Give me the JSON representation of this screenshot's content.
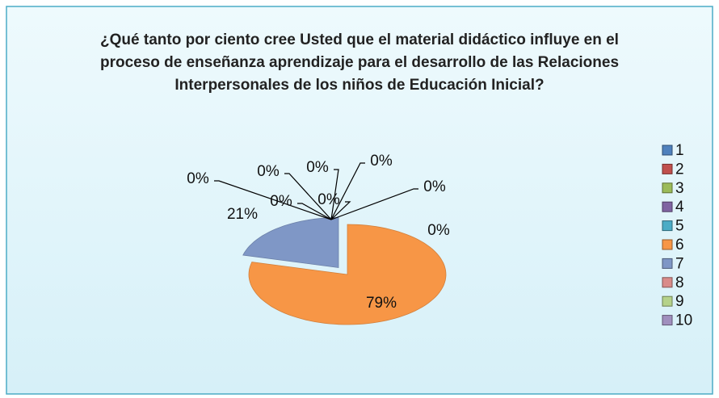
{
  "chart_data": {
    "type": "pie3d",
    "title": "¿Qué tanto por ciento cree Usted que el material didáctico influye en el proceso de enseñanza aprendizaje para el desarrollo de las Relaciones Interpersonales de los niños de Educación Inicial?",
    "categories": [
      "1",
      "2",
      "3",
      "4",
      "5",
      "6",
      "7",
      "8",
      "9",
      "10"
    ],
    "values": [
      0,
      0,
      0,
      0,
      0,
      79,
      21,
      0,
      0,
      0
    ],
    "value_labels": [
      "0%",
      "0%",
      "0%",
      "0%",
      "0%",
      "79%",
      "21%",
      "0%",
      "0%",
      "0%"
    ],
    "colors": [
      "#4f81bd",
      "#c0504d",
      "#9bbb59",
      "#8064a2",
      "#4bacc6",
      "#f79646",
      "#7f97c6",
      "#d98b89",
      "#b5d28a",
      "#a08fbe"
    ],
    "legend": "right"
  }
}
